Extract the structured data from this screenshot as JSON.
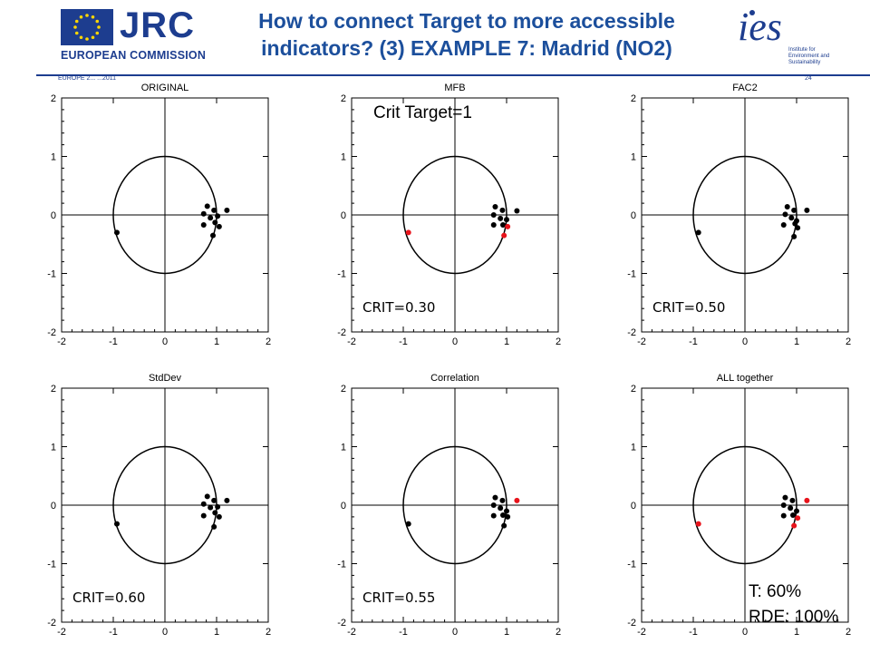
{
  "header": {
    "org_name": "JRC",
    "org_sub": "EUROPEAN COMMISSION",
    "title_line1": "How to connect Target to more accessible",
    "title_line2": "indicators? (3) EXAMPLE 7: Madrid (NO2)",
    "footer_left": "EUROPE 2... ...2011",
    "page_number": "24",
    "ies_logo_text": "Institute for Environment and Sustainability"
  },
  "annotations": {
    "crit_target": "Crit Target=1",
    "t_percent": "T: 60%",
    "rde_percent": "RDE: 100%"
  },
  "colors": {
    "title": "#1c4f9c",
    "brand_blue": "#1d3d8f",
    "highlight_point": "#e8141c",
    "normal_point": "#000000"
  },
  "chart_data": [
    {
      "type": "scatter",
      "title": "ORIGINAL",
      "crit_label": "",
      "xlim": [
        -2,
        2
      ],
      "ylim": [
        -2,
        2
      ],
      "x_ticks": [
        "-2",
        "-1",
        "0",
        "1",
        "2"
      ],
      "y_ticks": [
        "2",
        "1",
        "0",
        "-1",
        "-2"
      ],
      "circle_radius": 1,
      "points": [
        {
          "x": 0.82,
          "y": 0.15,
          "red": false
        },
        {
          "x": 0.95,
          "y": 0.08,
          "red": false
        },
        {
          "x": 1.2,
          "y": 0.08,
          "red": false
        },
        {
          "x": 0.75,
          "y": 0.02,
          "red": false
        },
        {
          "x": 0.88,
          "y": -0.05,
          "red": false
        },
        {
          "x": 1.02,
          "y": -0.02,
          "red": false
        },
        {
          "x": 0.75,
          "y": -0.17,
          "red": false
        },
        {
          "x": 0.97,
          "y": -0.13,
          "red": false
        },
        {
          "x": 1.05,
          "y": -0.2,
          "red": false
        },
        {
          "x": 0.93,
          "y": -0.35,
          "red": false
        },
        {
          "x": -0.93,
          "y": -0.3,
          "red": false
        }
      ]
    },
    {
      "type": "scatter",
      "title": "MFB",
      "crit_label": "CRIT=0.30",
      "xlim": [
        -2,
        2
      ],
      "ylim": [
        -2,
        2
      ],
      "x_ticks": [
        "-2",
        "-1",
        "0",
        "1",
        "2"
      ],
      "y_ticks": [
        "2",
        "1",
        "0",
        "-1",
        "-2"
      ],
      "circle_radius": 1,
      "points": [
        {
          "x": 0.78,
          "y": 0.14,
          "red": false
        },
        {
          "x": 0.92,
          "y": 0.08,
          "red": false
        },
        {
          "x": 1.2,
          "y": 0.07,
          "red": false
        },
        {
          "x": 0.75,
          "y": 0.0,
          "red": false
        },
        {
          "x": 0.88,
          "y": -0.06,
          "red": false
        },
        {
          "x": 1.0,
          "y": -0.08,
          "red": false
        },
        {
          "x": 0.75,
          "y": -0.17,
          "red": false
        },
        {
          "x": 0.93,
          "y": -0.17,
          "red": false
        },
        {
          "x": 1.02,
          "y": -0.2,
          "red": true
        },
        {
          "x": 0.95,
          "y": -0.35,
          "red": true
        },
        {
          "x": -0.9,
          "y": -0.3,
          "red": true
        }
      ]
    },
    {
      "type": "scatter",
      "title": "FAC2",
      "crit_label": "CRIT=0.50",
      "xlim": [
        -2,
        2
      ],
      "ylim": [
        -2,
        2
      ],
      "x_ticks": [
        "-2",
        "-1",
        "0",
        "1",
        "2"
      ],
      "y_ticks": [
        "2",
        "1",
        "0",
        "-1",
        "-2"
      ],
      "circle_radius": 1,
      "points": [
        {
          "x": 0.82,
          "y": 0.14,
          "red": false
        },
        {
          "x": 0.95,
          "y": 0.08,
          "red": false
        },
        {
          "x": 1.2,
          "y": 0.08,
          "red": false
        },
        {
          "x": 0.78,
          "y": 0.01,
          "red": false
        },
        {
          "x": 0.9,
          "y": -0.05,
          "red": false
        },
        {
          "x": 1.0,
          "y": -0.1,
          "red": false
        },
        {
          "x": 0.75,
          "y": -0.17,
          "red": false
        },
        {
          "x": 0.97,
          "y": -0.15,
          "red": false
        },
        {
          "x": 1.02,
          "y": -0.22,
          "red": false
        },
        {
          "x": 0.95,
          "y": -0.37,
          "red": false
        },
        {
          "x": -0.9,
          "y": -0.3,
          "red": false
        }
      ]
    },
    {
      "type": "scatter",
      "title": "StdDev",
      "crit_label": "CRIT=0.60",
      "xlim": [
        -2,
        2
      ],
      "ylim": [
        -2,
        2
      ],
      "x_ticks": [
        "-2",
        "-1",
        "0",
        "1",
        "2"
      ],
      "y_ticks": [
        "2",
        "1",
        "0",
        "-1",
        "-2"
      ],
      "circle_radius": 1,
      "points": [
        {
          "x": 0.82,
          "y": 0.15,
          "red": false
        },
        {
          "x": 0.95,
          "y": 0.08,
          "red": false
        },
        {
          "x": 1.2,
          "y": 0.08,
          "red": false
        },
        {
          "x": 0.75,
          "y": 0.02,
          "red": false
        },
        {
          "x": 0.88,
          "y": -0.04,
          "red": false
        },
        {
          "x": 1.02,
          "y": -0.03,
          "red": false
        },
        {
          "x": 0.75,
          "y": -0.18,
          "red": false
        },
        {
          "x": 0.97,
          "y": -0.13,
          "red": false
        },
        {
          "x": 1.05,
          "y": -0.2,
          "red": false
        },
        {
          "x": 0.95,
          "y": -0.37,
          "red": false
        },
        {
          "x": -0.93,
          "y": -0.32,
          "red": false
        }
      ]
    },
    {
      "type": "scatter",
      "title": "Correlation",
      "crit_label": "CRIT=0.55",
      "xlim": [
        -2,
        2
      ],
      "ylim": [
        -2,
        2
      ],
      "x_ticks": [
        "-2",
        "-1",
        "0",
        "1",
        "2"
      ],
      "y_ticks": [
        "2",
        "1",
        "0",
        "-1",
        "-2"
      ],
      "circle_radius": 1,
      "points": [
        {
          "x": 0.78,
          "y": 0.13,
          "red": false
        },
        {
          "x": 0.92,
          "y": 0.08,
          "red": false
        },
        {
          "x": 1.2,
          "y": 0.08,
          "red": true
        },
        {
          "x": 0.75,
          "y": 0.0,
          "red": false
        },
        {
          "x": 0.88,
          "y": -0.05,
          "red": false
        },
        {
          "x": 1.0,
          "y": -0.1,
          "red": false
        },
        {
          "x": 0.75,
          "y": -0.18,
          "red": false
        },
        {
          "x": 0.93,
          "y": -0.17,
          "red": false
        },
        {
          "x": 1.02,
          "y": -0.2,
          "red": false
        },
        {
          "x": 0.95,
          "y": -0.35,
          "red": false
        },
        {
          "x": -0.9,
          "y": -0.32,
          "red": false
        }
      ]
    },
    {
      "type": "scatter",
      "title": "ALL together",
      "crit_label": "",
      "xlim": [
        -2,
        2
      ],
      "ylim": [
        -2,
        2
      ],
      "x_ticks": [
        "-2",
        "-1",
        "0",
        "1",
        "2"
      ],
      "y_ticks": [
        "2",
        "1",
        "0",
        "-1",
        "-2"
      ],
      "circle_radius": 1,
      "points": [
        {
          "x": 0.78,
          "y": 0.13,
          "red": false
        },
        {
          "x": 0.92,
          "y": 0.08,
          "red": false
        },
        {
          "x": 1.2,
          "y": 0.08,
          "red": true
        },
        {
          "x": 0.75,
          "y": 0.0,
          "red": false
        },
        {
          "x": 0.88,
          "y": -0.05,
          "red": false
        },
        {
          "x": 1.0,
          "y": -0.1,
          "red": false
        },
        {
          "x": 0.75,
          "y": -0.18,
          "red": false
        },
        {
          "x": 0.93,
          "y": -0.17,
          "red": false
        },
        {
          "x": 1.02,
          "y": -0.22,
          "red": true
        },
        {
          "x": 0.95,
          "y": -0.35,
          "red": true
        },
        {
          "x": -0.9,
          "y": -0.32,
          "red": true
        }
      ]
    }
  ]
}
